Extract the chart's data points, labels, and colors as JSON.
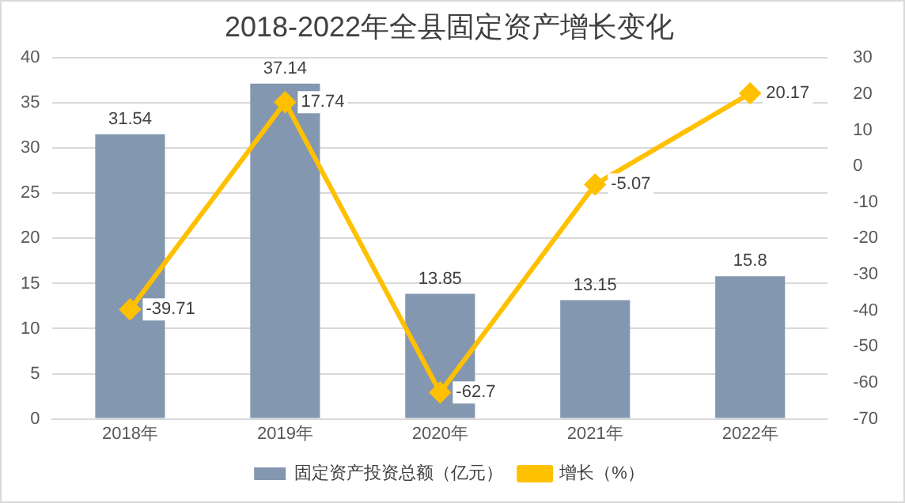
{
  "chart_data": {
    "type": "bar",
    "title": "2018-2022年全县固定资产增长变化",
    "categories": [
      "2018年",
      "2019年",
      "2020年",
      "2021年",
      "2022年"
    ],
    "series": [
      {
        "name": "固定资产投资总额（亿元）",
        "color": "#8497b0",
        "values": [
          31.54,
          37.14,
          13.85,
          13.15,
          15.8
        ]
      },
      {
        "name": "增长（%）",
        "type": "line",
        "axis": "y2",
        "color": "#ffc000",
        "marker": "diamond",
        "values": [
          -39.71,
          17.74,
          -62.7,
          -5.07,
          20.17
        ]
      }
    ],
    "ylim": [
      0,
      40
    ],
    "yticks": [
      0,
      5,
      10,
      15,
      20,
      25,
      30,
      35,
      40
    ],
    "y2lim": [
      -70,
      30
    ],
    "y2ticks": [
      -70,
      -60,
      -50,
      -40,
      -30,
      -20,
      -10,
      0,
      10,
      20,
      30
    ],
    "grid": "y",
    "legend": "bottom",
    "data_labels": true
  }
}
